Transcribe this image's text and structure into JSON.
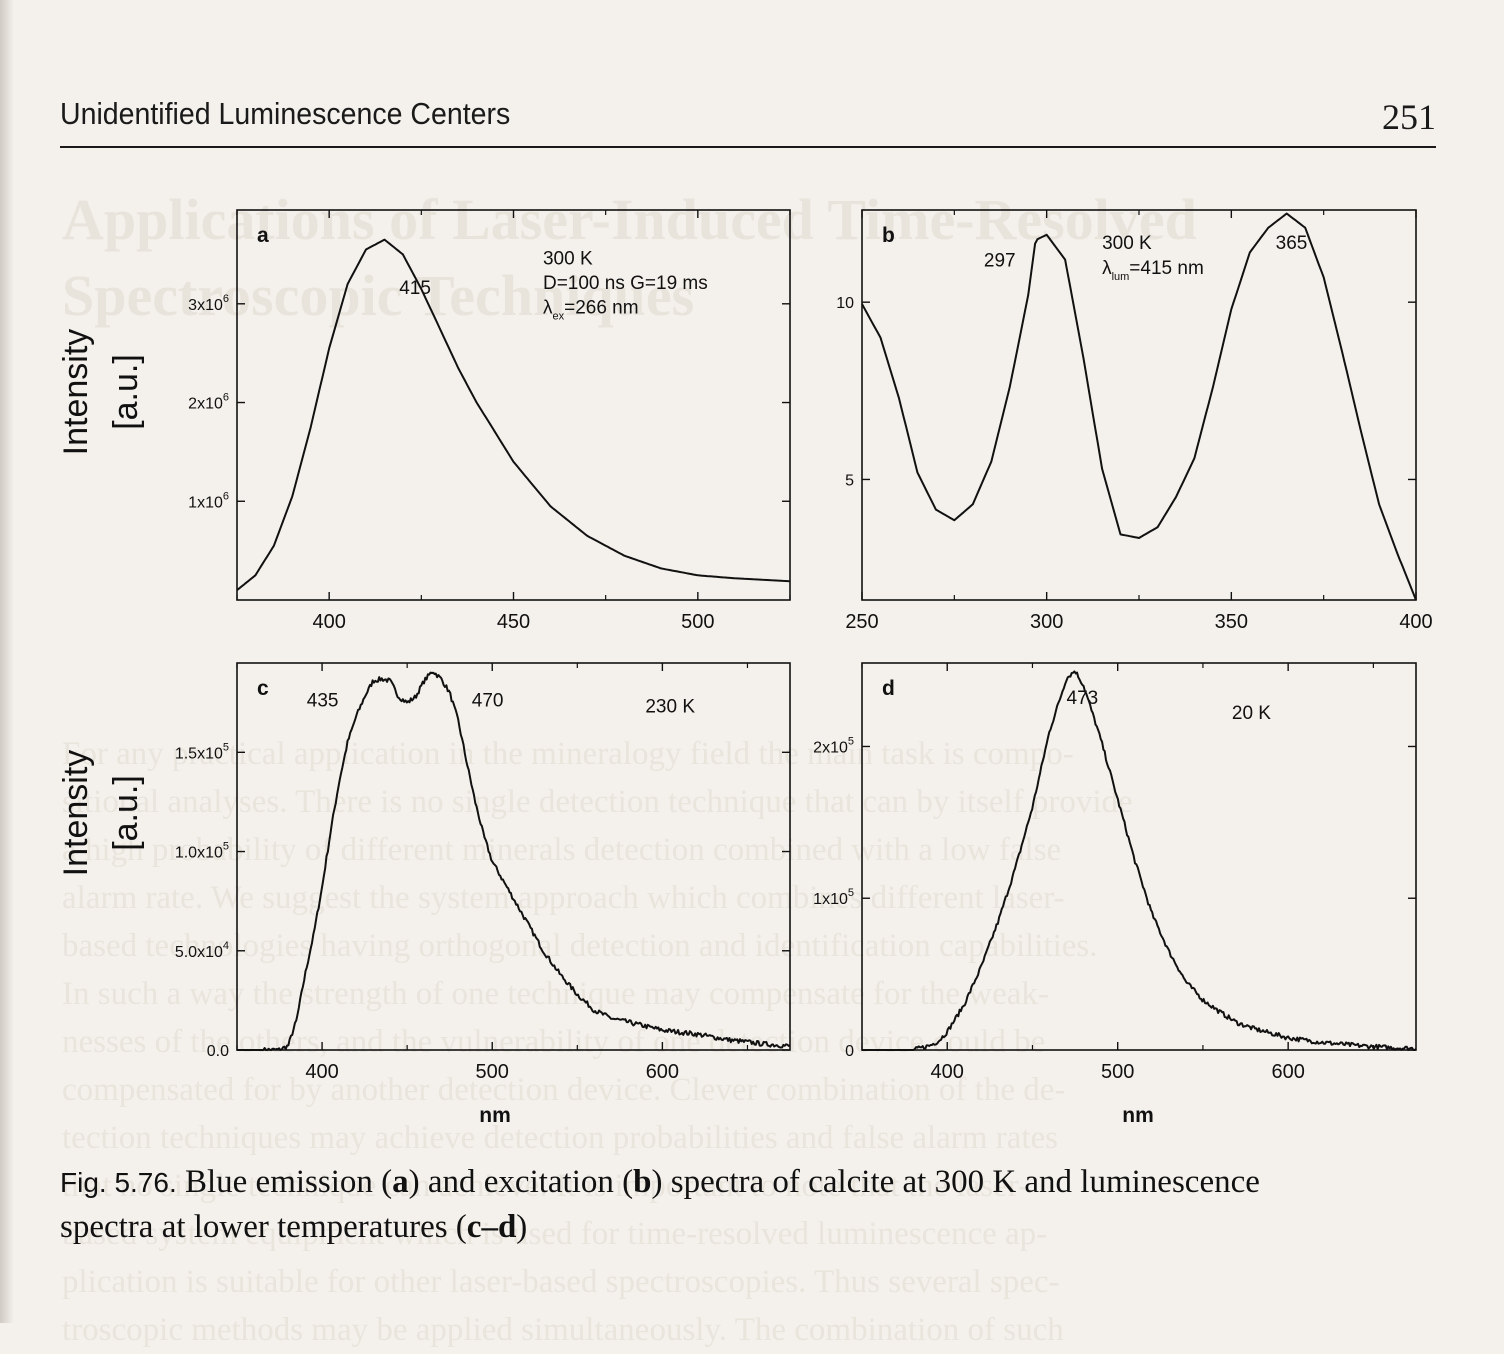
{
  "running_head": {
    "title": "Unidentified Luminescence Centers",
    "page_number": "251"
  },
  "bleed_through": {
    "heading_lines": [
      "Applications of Laser-Induced Time-Resolved",
      "Spectroscopic Techniques"
    ],
    "body_lines": [
      "For any practical application in the mineralogy field the main task is compo-",
      "sitional analyses. There is no single detection technique that can by itself provide",
      "a high probability of different minerals detection combined with a low false",
      "alarm rate. We suggest the system approach which combines different laser-",
      "based technologies having orthogonal detection and identification capabilities.",
      "In such a way the strength of one technique may compensate for the weak-",
      "nesses of the others, and the vulnerability of one detection device could be",
      "compensated for by another detection device. Clever combination of the de-",
      "tection techniques may achieve detection probabilities and false alarm rates",
      "that no single technique can achieve. It is important to note that the laser-",
      "based system equipment which is used for time-resolved luminescence ap-",
      "plication is suitable for other laser-based spectroscopies. Thus several spec-",
      "troscopic methods may be applied simultaneously. The combination of such"
    ]
  },
  "figure": {
    "row_ylabel_line1": "Intensity",
    "row_ylabel_line2": "[a.u.]",
    "xlabel": "nm"
  },
  "caption": {
    "label": "Fig. 5.76.",
    "t1": "Blue emission (",
    "b1": "a",
    "t2": ") and excitation (",
    "b2": "b",
    "t3": ") spectra of calcite at 300 K and luminescence",
    "t4": "spectra at lower temperatures (",
    "b3": "c–d",
    "t5": ")"
  },
  "chart_data": [
    {
      "panel": "a",
      "type": "line",
      "x": [
        375,
        380,
        385,
        390,
        395,
        400,
        405,
        410,
        415,
        420,
        425,
        430,
        435,
        440,
        450,
        460,
        470,
        480,
        490,
        500,
        510,
        520,
        525
      ],
      "y": [
        0.1,
        0.25,
        0.55,
        1.05,
        1.75,
        2.55,
        3.2,
        3.55,
        3.65,
        3.5,
        3.15,
        2.75,
        2.35,
        2.0,
        1.4,
        0.95,
        0.65,
        0.45,
        0.32,
        0.25,
        0.22,
        0.2,
        0.19
      ],
      "xlim": [
        375,
        525
      ],
      "ylim": [
        0,
        3.95
      ],
      "xticks": [
        "400",
        "450",
        "500"
      ],
      "yticks": [
        {
          "value": 1,
          "label": "1x10",
          "exp": "6"
        },
        {
          "value": 2,
          "label": "2x10",
          "exp": "6"
        },
        {
          "value": 3,
          "label": "3x10",
          "exp": "6"
        }
      ],
      "annotations": [
        {
          "text": "415",
          "x": 419,
          "y": 3.1
        },
        {
          "text": "300 K",
          "x": 458,
          "y": 3.4
        },
        {
          "text": "D=100 ns G=19 ms",
          "x": 458,
          "y": 3.15
        }
      ],
      "lambda_label": {
        "symbol": "λ",
        "sub": "ex",
        "text": "=266 nm",
        "x": 458,
        "y": 2.9
      },
      "noise": 0
    },
    {
      "panel": "b",
      "type": "line",
      "x": [
        250,
        255,
        260,
        265,
        270,
        275,
        280,
        285,
        290,
        295,
        297,
        300,
        305,
        310,
        315,
        320,
        325,
        330,
        335,
        340,
        345,
        350,
        355,
        360,
        365,
        370,
        375,
        380,
        385,
        390,
        395,
        400
      ],
      "y": [
        9.95,
        9.0,
        7.3,
        5.2,
        4.15,
        3.85,
        4.3,
        5.5,
        7.6,
        10.2,
        11.75,
        11.9,
        11.2,
        8.4,
        5.3,
        3.45,
        3.35,
        3.65,
        4.5,
        5.6,
        7.6,
        9.8,
        11.4,
        12.1,
        12.5,
        12.1,
        10.7,
        8.6,
        6.4,
        4.3,
        2.9,
        1.6
      ],
      "xlim": [
        250,
        400
      ],
      "ylim": [
        1.6,
        12.6
      ],
      "xticks": [
        "250",
        "300",
        "350",
        "400"
      ],
      "yticks": [
        {
          "value": 5,
          "label": "5",
          "exp": ""
        },
        {
          "value": 10,
          "label": "10",
          "exp": ""
        }
      ],
      "annotations": [
        {
          "text": "297",
          "x": 283,
          "y": 11.0
        },
        {
          "text": "365",
          "x": 362,
          "y": 11.5
        },
        {
          "text": "300 K",
          "x": 315,
          "y": 11.5
        }
      ],
      "lambda_label": {
        "symbol": "λ",
        "sub": "lum",
        "text": "=415 nm",
        "x": 315,
        "y": 10.8
      },
      "noise": 0
    },
    {
      "panel": "c",
      "type": "line",
      "x": [
        350,
        365,
        375,
        380,
        385,
        390,
        395,
        400,
        405,
        410,
        415,
        420,
        425,
        430,
        435,
        440,
        445,
        450,
        455,
        460,
        465,
        470,
        475,
        480,
        485,
        490,
        495,
        500,
        510,
        520,
        530,
        540,
        550,
        560,
        570,
        580,
        590,
        600,
        620,
        640,
        660,
        675
      ],
      "y": [
        0,
        0,
        0.001,
        0.02,
        0.15,
        0.38,
        0.58,
        0.82,
        1.1,
        1.35,
        1.55,
        1.68,
        1.78,
        1.86,
        1.87,
        1.86,
        1.78,
        1.75,
        1.78,
        1.86,
        1.91,
        1.87,
        1.8,
        1.66,
        1.45,
        1.25,
        1.08,
        0.95,
        0.8,
        0.65,
        0.5,
        0.38,
        0.28,
        0.2,
        0.16,
        0.14,
        0.12,
        0.1,
        0.08,
        0.05,
        0.03,
        0.02
      ],
      "xlim": [
        350,
        675
      ],
      "ylim": [
        0,
        1.95
      ],
      "scale_note": "values in units of 10^5",
      "xticks": [
        "400",
        "500",
        "600"
      ],
      "yticks": [
        {
          "value": 0,
          "label": "0.0",
          "exp": ""
        },
        {
          "value": 0.5,
          "label": "5.0x10",
          "exp": "4"
        },
        {
          "value": 1.0,
          "label": "1.0x10",
          "exp": "5"
        },
        {
          "value": 1.5,
          "label": "1.5x10",
          "exp": "5"
        }
      ],
      "annotations": [
        {
          "text": "435",
          "x": 391,
          "y": 1.73
        },
        {
          "text": "470",
          "x": 488,
          "y": 1.73
        },
        {
          "text": "230 K",
          "x": 590,
          "y": 1.7
        }
      ],
      "noise": 0.012
    },
    {
      "panel": "d",
      "type": "line",
      "x": [
        350,
        380,
        390,
        395,
        400,
        410,
        420,
        430,
        440,
        450,
        460,
        470,
        475,
        480,
        490,
        500,
        510,
        520,
        530,
        540,
        550,
        560,
        570,
        580,
        590,
        600,
        620,
        640,
        660,
        675
      ],
      "y": [
        0,
        0,
        0.003,
        0.006,
        0.012,
        0.03,
        0.055,
        0.085,
        0.12,
        0.16,
        0.21,
        0.245,
        0.25,
        0.24,
        0.205,
        0.165,
        0.125,
        0.09,
        0.065,
        0.045,
        0.033,
        0.025,
        0.018,
        0.014,
        0.011,
        0.008,
        0.005,
        0.003,
        0.0015,
        0.001
      ],
      "xlim": [
        350,
        675
      ],
      "ylim": [
        0,
        0.255
      ],
      "scale_note": "values in units of 10^6",
      "xticks": [
        "400",
        "500",
        "600"
      ],
      "yticks": [
        {
          "value": 0,
          "label": "0",
          "exp": ""
        },
        {
          "value": 0.1,
          "label": "1x10",
          "exp": "5"
        },
        {
          "value": 0.2,
          "label": "2x10",
          "exp": "5"
        }
      ],
      "annotations": [
        {
          "text": "473",
          "x": 470,
          "y": 0.228
        },
        {
          "text": "20 K",
          "x": 567,
          "y": 0.218
        }
      ],
      "noise": 0.0015
    }
  ]
}
